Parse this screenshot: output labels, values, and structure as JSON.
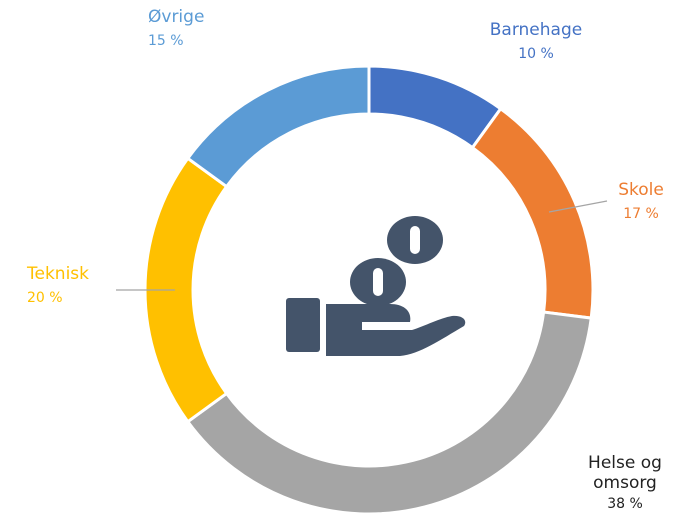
{
  "chart_data": {
    "type": "donut",
    "categories": [
      "Barnehage",
      "Skole",
      "Helse og omsorg",
      "Teknisk",
      "Øvrige"
    ],
    "values": [
      10,
      17,
      38,
      20,
      15
    ],
    "value_labels": [
      "10 %",
      "17 %",
      "38 %",
      "20 %",
      "15 %"
    ],
    "colors": [
      "#4472c4",
      "#ed7d31",
      "#a5a5a5",
      "#ffc000",
      "#5b9bd5"
    ]
  }
}
